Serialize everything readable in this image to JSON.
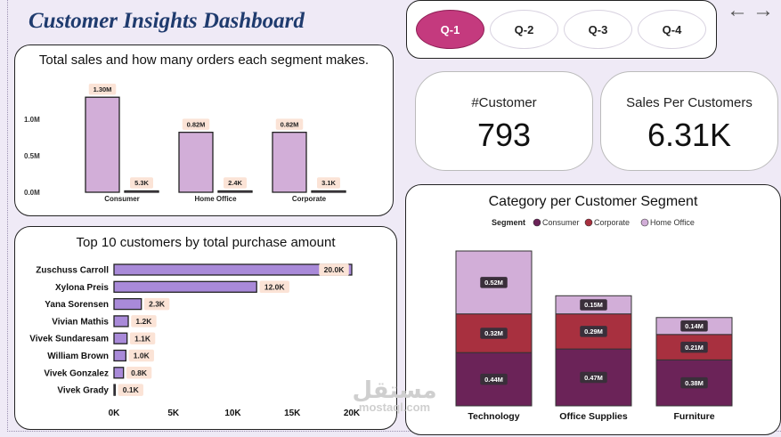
{
  "dashboard": {
    "title": "Customer Insights Dashboard"
  },
  "quarter_nav": {
    "buttons": [
      {
        "label": "Q-1",
        "active": true
      },
      {
        "label": "Q-2",
        "active": false
      },
      {
        "label": "Q-3",
        "active": false
      },
      {
        "label": "Q-4",
        "active": false
      }
    ],
    "back_arrow": "←",
    "forward_arrow": "→"
  },
  "kpis": {
    "customers": {
      "label": "#Customer",
      "value": "793"
    },
    "sales_per_customer": {
      "label": "Sales Per Customers",
      "value": "6.31K"
    }
  },
  "watermark": {
    "arabic": "مستقل",
    "latin": "mostaql.com"
  },
  "chart_data": [
    {
      "id": "segment_sales_orders",
      "type": "bar",
      "title": "Total sales and how many orders each segment makes.",
      "categories": [
        "Consumer",
        "Home Office",
        "Corporate"
      ],
      "series": [
        {
          "values": [
            1300000,
            820000,
            820000
          ],
          "labels": [
            "1.30M",
            "0.82M",
            "0.82M"
          ],
          "color": "#d2aed8"
        },
        {
          "values": [
            5300,
            2400,
            3100
          ],
          "labels": [
            "5.3K",
            "2.4K",
            "3.1K"
          ],
          "color": "#d2aed8"
        }
      ],
      "yticks": [
        "0.0M",
        "0.5M",
        "1.0M"
      ],
      "ylim": [
        0,
        1400000
      ],
      "xlabel": "",
      "ylabel": ""
    },
    {
      "id": "top_customers",
      "type": "bar",
      "orientation": "horizontal",
      "title": "Top 10 customers by total purchase amount",
      "categories": [
        "Zuschuss Carroll",
        "Xylona Preis",
        "Yana Sorensen",
        "Vivian Mathis",
        "Vivek Sundaresam",
        "William Brown",
        "Vivek Gonzalez",
        "Vivek Grady"
      ],
      "values": [
        20000,
        12000,
        2300,
        1200,
        1100,
        1000,
        800,
        100
      ],
      "labels": [
        "20.0K",
        "12.0K",
        "2.3K",
        "1.2K",
        "1.1K",
        "1.0K",
        "0.8K",
        "0.1K"
      ],
      "xticks": [
        "0K",
        "5K",
        "10K",
        "15K",
        "20K"
      ],
      "xlim": [
        0,
        20000
      ],
      "color": "#a98ad9"
    },
    {
      "id": "category_segment",
      "type": "bar",
      "stacked": true,
      "title": "Category per Customer Segment",
      "legend_title": "Segment",
      "legend_position": "top",
      "categories": [
        "Technology",
        "Office Supplies",
        "Furniture"
      ],
      "series": [
        {
          "name": "Consumer",
          "values": [
            440000,
            470000,
            380000
          ],
          "labels": [
            "0.44M",
            "0.47M",
            "0.38M"
          ],
          "color": "#6b2358"
        },
        {
          "name": "Corporate",
          "values": [
            320000,
            290000,
            210000
          ],
          "labels": [
            "0.32M",
            "0.29M",
            "0.21M"
          ],
          "color": "#a8303f"
        },
        {
          "name": "Home Office",
          "values": [
            520000,
            150000,
            140000
          ],
          "labels": [
            "0.52M",
            "0.15M",
            "0.14M"
          ],
          "color": "#d2aed8"
        }
      ],
      "ylim": [
        0,
        1280000
      ]
    }
  ]
}
